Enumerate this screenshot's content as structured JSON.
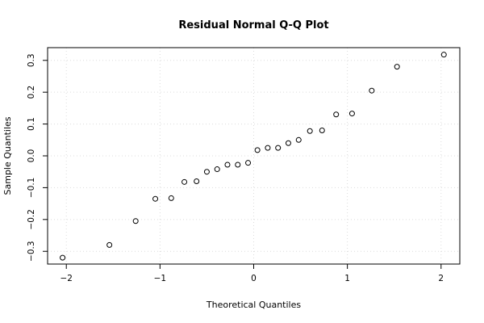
{
  "chart_data": {
    "type": "scatter",
    "title": "Residual Normal Q-Q Plot",
    "xlabel": "Theoretical Quantiles",
    "ylabel": "Sample Quantiles",
    "xlim": [
      -2.2,
      2.2
    ],
    "ylim": [
      -0.34,
      0.34
    ],
    "x_ticks": [
      -2,
      -1,
      0,
      1,
      2
    ],
    "x_tick_labels": [
      "−2",
      "−1",
      "0",
      "1",
      "2"
    ],
    "y_ticks": [
      -0.3,
      -0.2,
      -0.1,
      0.0,
      0.1,
      0.2,
      0.3
    ],
    "y_tick_labels": [
      "−0.3",
      "−0.2",
      "−0.1",
      "0.0",
      "0.1",
      "0.2",
      "0.3"
    ],
    "grid": true,
    "points": [
      {
        "x": -2.04,
        "y": -0.32
      },
      {
        "x": -1.54,
        "y": -0.28
      },
      {
        "x": -1.26,
        "y": -0.205
      },
      {
        "x": -1.05,
        "y": -0.135
      },
      {
        "x": -0.88,
        "y": -0.133
      },
      {
        "x": -0.74,
        "y": -0.082
      },
      {
        "x": -0.61,
        "y": -0.08
      },
      {
        "x": -0.5,
        "y": -0.05
      },
      {
        "x": -0.39,
        "y": -0.042
      },
      {
        "x": -0.28,
        "y": -0.028
      },
      {
        "x": -0.17,
        "y": -0.028
      },
      {
        "x": -0.06,
        "y": -0.022
      },
      {
        "x": 0.04,
        "y": 0.018
      },
      {
        "x": 0.15,
        "y": 0.025
      },
      {
        "x": 0.26,
        "y": 0.025
      },
      {
        "x": 0.37,
        "y": 0.04
      },
      {
        "x": 0.48,
        "y": 0.05
      },
      {
        "x": 0.6,
        "y": 0.078
      },
      {
        "x": 0.73,
        "y": 0.08
      },
      {
        "x": 0.88,
        "y": 0.13
      },
      {
        "x": 1.05,
        "y": 0.133
      },
      {
        "x": 1.26,
        "y": 0.205
      },
      {
        "x": 1.53,
        "y": 0.28
      },
      {
        "x": 2.03,
        "y": 0.318
      }
    ]
  }
}
